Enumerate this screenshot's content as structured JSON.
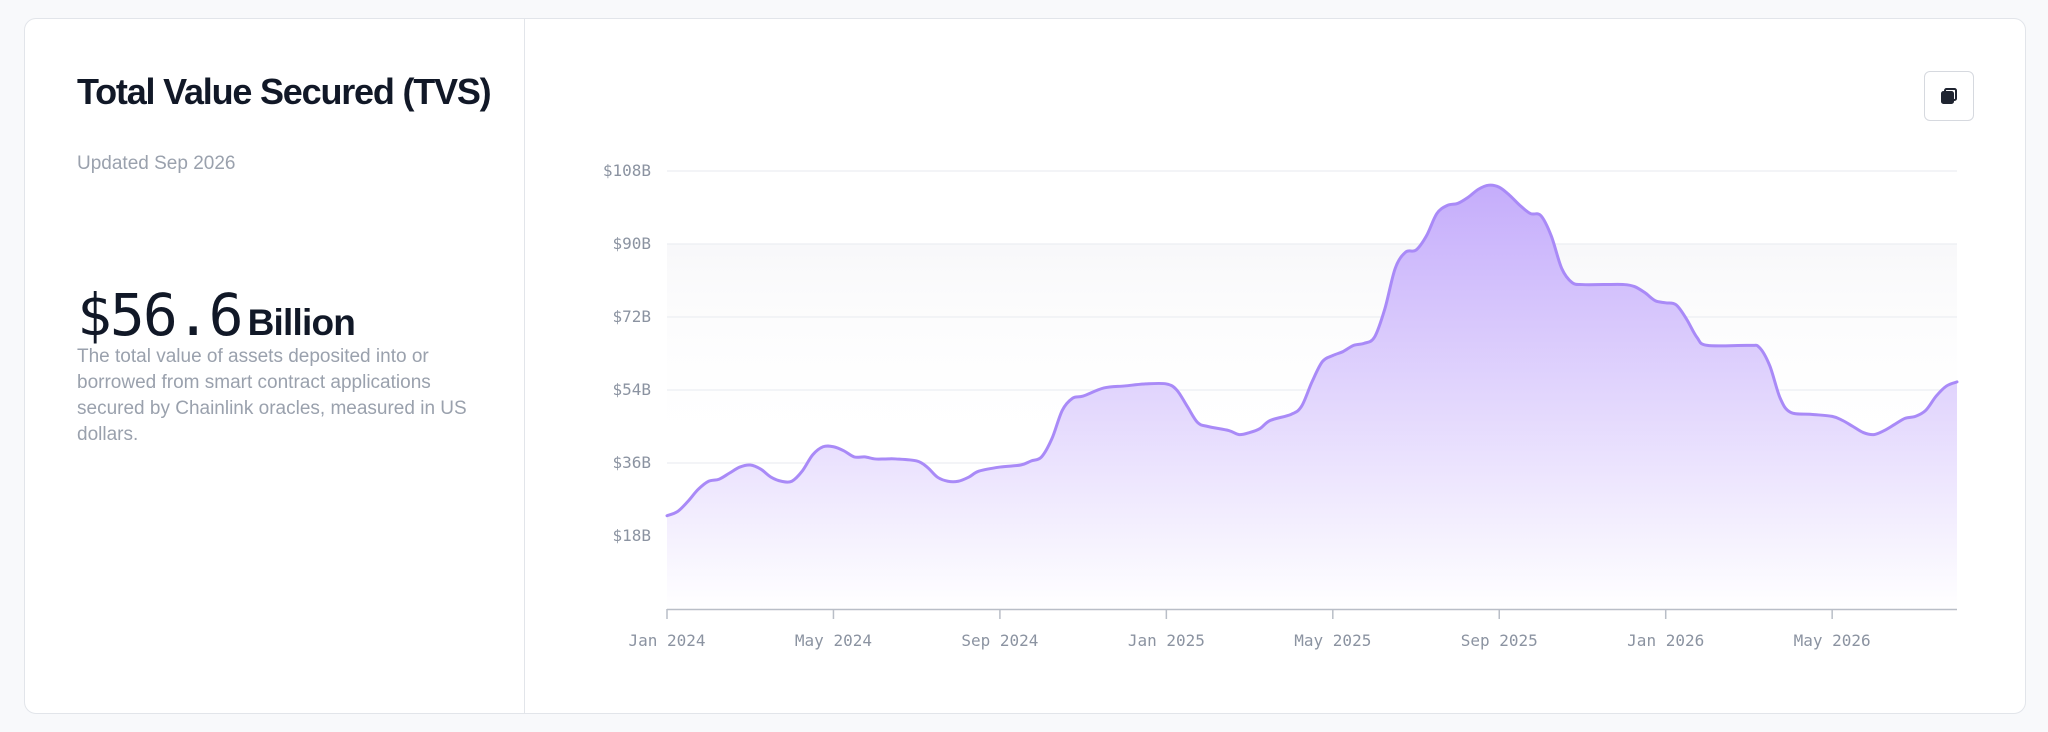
{
  "panel": {
    "title": "Total Value Secured (TVS)",
    "updated": "Updated Sep 2026",
    "value": "$56.6",
    "unit": "Billion",
    "description": "The total value of assets deposited into or borrowed from smart contract applications secured by Chainlink oracles, measured in US dollars."
  },
  "toolbar": {
    "copy_icon": "copy-icon"
  },
  "colors": {
    "line": "#a98af7",
    "fill_top": "#c5adfb",
    "fill_bottom": "#ffffff",
    "grid": "#eceef2",
    "axis": "#b9bec7",
    "tick_text": "#8b93a1"
  },
  "chart_data": {
    "type": "area",
    "x_start": "2024-01-01",
    "y_ticks": [
      {
        "value": 18,
        "label": "$18B"
      },
      {
        "value": 36,
        "label": "$36B"
      },
      {
        "value": 54,
        "label": "$54B"
      },
      {
        "value": 72,
        "label": "$72B"
      },
      {
        "value": 90,
        "label": "$90B"
      },
      {
        "value": 108,
        "label": "$108B"
      }
    ],
    "x_ticks": [
      {
        "x": 0,
        "label": "Jan 2024"
      },
      {
        "x": 4,
        "label": "May 2024"
      },
      {
        "x": 8,
        "label": "Sep 2024"
      },
      {
        "x": 12,
        "label": "Jan 2025"
      },
      {
        "x": 16,
        "label": "May 2025"
      },
      {
        "x": 20,
        "label": "Sep 2025"
      },
      {
        "x": 24,
        "label": "Jan 2026"
      },
      {
        "x": 28,
        "label": "May 2026"
      }
    ],
    "ylim": [
      0,
      108
    ],
    "xlim": [
      0,
      31
    ],
    "grid": true,
    "series": [
      {
        "points": [
          [
            0,
            23
          ],
          [
            0.25,
            24
          ],
          [
            0.5,
            26.5
          ],
          [
            0.75,
            29.5
          ],
          [
            1,
            31.5
          ],
          [
            1.25,
            32
          ],
          [
            1.5,
            33.5
          ],
          [
            1.75,
            35
          ],
          [
            2,
            35.5
          ],
          [
            2.25,
            34.5
          ],
          [
            2.5,
            32.5
          ],
          [
            2.75,
            31.5
          ],
          [
            3,
            31.5
          ],
          [
            3.25,
            34
          ],
          [
            3.5,
            38
          ],
          [
            3.75,
            40
          ],
          [
            4,
            40
          ],
          [
            4.25,
            39
          ],
          [
            4.5,
            37.5
          ],
          [
            4.75,
            37.5
          ],
          [
            5,
            37
          ],
          [
            5.25,
            37
          ],
          [
            5.5,
            37
          ],
          [
            6,
            36.5
          ],
          [
            6.25,
            35
          ],
          [
            6.5,
            32.5
          ],
          [
            6.75,
            31.5
          ],
          [
            7,
            31.5
          ],
          [
            7.25,
            32.5
          ],
          [
            7.5,
            34
          ],
          [
            8,
            35
          ],
          [
            8.5,
            35.5
          ],
          [
            8.75,
            36.5
          ],
          [
            9,
            37.5
          ],
          [
            9.25,
            42
          ],
          [
            9.5,
            49
          ],
          [
            9.75,
            52
          ],
          [
            10,
            52.5
          ],
          [
            10.5,
            54.5
          ],
          [
            11,
            55
          ],
          [
            11.5,
            55.5
          ],
          [
            12,
            55.5
          ],
          [
            12.25,
            54
          ],
          [
            12.5,
            50
          ],
          [
            12.75,
            46
          ],
          [
            13,
            45
          ],
          [
            13.5,
            44
          ],
          [
            13.75,
            43
          ],
          [
            14,
            43.5
          ],
          [
            14.25,
            44.5
          ],
          [
            14.5,
            46.5
          ],
          [
            15,
            48
          ],
          [
            15.25,
            50
          ],
          [
            15.5,
            56
          ],
          [
            15.75,
            61
          ],
          [
            16,
            62.5
          ],
          [
            16.25,
            63.5
          ],
          [
            16.5,
            65
          ],
          [
            16.75,
            65.5
          ],
          [
            17,
            67
          ],
          [
            17.25,
            74
          ],
          [
            17.5,
            84
          ],
          [
            17.75,
            88
          ],
          [
            18,
            88.5
          ],
          [
            18.25,
            92
          ],
          [
            18.5,
            97.5
          ],
          [
            18.75,
            99.5
          ],
          [
            19,
            100
          ],
          [
            19.25,
            101.5
          ],
          [
            19.5,
            103.5
          ],
          [
            19.75,
            104.5
          ],
          [
            20,
            104
          ],
          [
            20.25,
            102
          ],
          [
            20.5,
            99.5
          ],
          [
            20.75,
            97.5
          ],
          [
            21,
            97
          ],
          [
            21.25,
            92
          ],
          [
            21.5,
            84
          ],
          [
            21.75,
            80.5
          ],
          [
            22,
            80
          ],
          [
            22.5,
            80
          ],
          [
            23,
            80
          ],
          [
            23.25,
            79.5
          ],
          [
            23.5,
            78
          ],
          [
            23.75,
            76
          ],
          [
            24,
            75.5
          ],
          [
            24.25,
            75
          ],
          [
            24.5,
            71.5
          ],
          [
            24.75,
            67
          ],
          [
            25,
            65
          ],
          [
            26,
            65
          ],
          [
            26.25,
            64.5
          ],
          [
            26.5,
            60
          ],
          [
            26.75,
            52
          ],
          [
            27,
            48.5
          ],
          [
            27.5,
            48
          ],
          [
            28,
            47.5
          ],
          [
            28.25,
            46.5
          ],
          [
            28.5,
            45
          ],
          [
            28.75,
            43.5
          ],
          [
            29,
            43
          ],
          [
            29.25,
            44
          ],
          [
            29.5,
            45.5
          ],
          [
            29.75,
            47
          ],
          [
            30,
            47.5
          ],
          [
            30.25,
            49
          ],
          [
            30.5,
            52.5
          ],
          [
            30.75,
            55
          ],
          [
            31,
            56
          ]
        ]
      }
    ]
  }
}
